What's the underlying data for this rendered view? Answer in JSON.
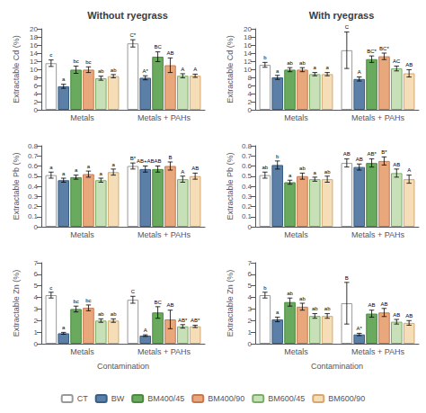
{
  "chart_data": [
    {
      "type": "bar",
      "title": "Without ryegrass",
      "ylabel": "Extractable Cd (%)",
      "categories": [
        "Metals",
        "Metals + PAHs"
      ],
      "series": [
        {
          "name": "CT",
          "color": "#ffffff",
          "edgecolor": "#999999",
          "values": [
            11.5,
            16.4
          ],
          "errors": [
            0.8,
            0.9
          ],
          "annotations": [
            "c",
            "C*"
          ]
        },
        {
          "name": "BW",
          "color": "#5b7fa6",
          "edgecolor": "#3a5f85",
          "values": [
            5.8,
            7.9
          ],
          "errors": [
            0.5,
            0.5
          ],
          "annotations": [
            "a",
            "A*"
          ]
        },
        {
          "name": "BM400/45",
          "color": "#6aaa5e",
          "edgecolor": "#4a8a3e",
          "values": [
            9.9,
            13.1
          ],
          "errors": [
            0.9,
            1.2
          ],
          "annotations": [
            "bc",
            "BC"
          ]
        },
        {
          "name": "BM400/90",
          "color": "#e8a87c",
          "edgecolor": "#c87850",
          "values": [
            9.9,
            11.0
          ],
          "errors": [
            0.7,
            1.8
          ],
          "annotations": [
            "bc",
            "AB"
          ]
        },
        {
          "name": "BM600/45",
          "color": "#c8e0b8",
          "edgecolor": "#7aaf68",
          "values": [
            7.8,
            8.4
          ],
          "errors": [
            0.5,
            0.5
          ],
          "annotations": [
            "ab",
            "A"
          ]
        },
        {
          "name": "BM600/90",
          "color": "#f5ddb8",
          "edgecolor": "#d5a870",
          "values": [
            8.3,
            8.4
          ],
          "errors": [
            0.4,
            0.4
          ],
          "annotations": [
            "ab",
            "A"
          ]
        }
      ],
      "ylim": [
        0,
        20
      ],
      "yticks": [
        0,
        2,
        4,
        6,
        8,
        10,
        12,
        14,
        16,
        18,
        20
      ],
      "grid": false,
      "legend": "bottom"
    },
    {
      "type": "bar",
      "title": "With ryegrass",
      "ylabel": "Extractable Cd (%)",
      "categories": [
        "Metals",
        "Metals + PAHs"
      ],
      "series": [
        {
          "name": "CT",
          "color": "#ffffff",
          "edgecolor": "#999999",
          "values": [
            11.1,
            14.7
          ],
          "errors": [
            0.6,
            4.5
          ],
          "annotations": [
            "b",
            "C"
          ]
        },
        {
          "name": "BW",
          "color": "#5b7fa6",
          "edgecolor": "#3a5f85",
          "values": [
            8.0,
            7.6
          ],
          "errors": [
            0.5,
            0.5
          ],
          "annotations": [
            "a",
            "A"
          ]
        },
        {
          "name": "BM400/45",
          "color": "#6aaa5e",
          "edgecolor": "#4a8a3e",
          "values": [
            9.9,
            12.5
          ],
          "errors": [
            0.5,
            0.8
          ],
          "annotations": [
            "ab",
            "BC*"
          ]
        },
        {
          "name": "BM400/90",
          "color": "#e8a87c",
          "edgecolor": "#c87850",
          "values": [
            9.9,
            13.2
          ],
          "errors": [
            0.5,
            0.8
          ],
          "annotations": [
            "ab",
            "BC*"
          ]
        },
        {
          "name": "BM600/45",
          "color": "#c8e0b8",
          "edgecolor": "#7aaf68",
          "values": [
            8.8,
            10.2
          ],
          "errors": [
            0.4,
            0.6
          ],
          "annotations": [
            "a",
            "AC"
          ]
        },
        {
          "name": "BM600/90",
          "color": "#f5ddb8",
          "edgecolor": "#d5a870",
          "values": [
            8.8,
            9.0
          ],
          "errors": [
            0.4,
            0.9
          ],
          "annotations": [
            "a",
            "AB"
          ]
        }
      ],
      "ylim": [
        0,
        20
      ],
      "yticks": [
        0,
        2,
        4,
        6,
        8,
        10,
        12,
        14,
        16,
        18,
        20
      ],
      "grid": false,
      "legend": "bottom"
    },
    {
      "type": "bar",
      "ylabel": "Extractable Pb (%)",
      "categories": [
        "Metals",
        "Metals + PAHs"
      ],
      "series": [
        {
          "name": "CT",
          "color": "#ffffff",
          "edgecolor": "#999999",
          "values": [
            0.51,
            0.6
          ],
          "errors": [
            0.03,
            0.03
          ],
          "annotations": [
            "a",
            "B*"
          ]
        },
        {
          "name": "BW",
          "color": "#5b7fa6",
          "edgecolor": "#3a5f85",
          "values": [
            0.46,
            0.57
          ],
          "errors": [
            0.02,
            0.03
          ],
          "annotations": [
            "a",
            "AB+AB"
          ]
        },
        {
          "name": "BM400/45",
          "color": "#6aaa5e",
          "edgecolor": "#4a8a3e",
          "values": [
            0.49,
            0.57
          ],
          "errors": [
            0.02,
            0.03
          ],
          "annotations": [
            "a",
            "AB"
          ]
        },
        {
          "name": "BM400/90",
          "color": "#e8a87c",
          "edgecolor": "#c87850",
          "values": [
            0.52,
            0.6
          ],
          "errors": [
            0.03,
            0.04
          ],
          "annotations": [
            "a",
            "B"
          ]
        },
        {
          "name": "BM600/45",
          "color": "#c8e0b8",
          "edgecolor": "#7aaf68",
          "values": [
            0.46,
            0.47
          ],
          "errors": [
            0.02,
            0.03
          ],
          "annotations": [
            "a",
            "A"
          ]
        },
        {
          "name": "BM600/90",
          "color": "#f5ddb8",
          "edgecolor": "#d5a870",
          "values": [
            0.54,
            0.5
          ],
          "errors": [
            0.03,
            0.03
          ],
          "annotations": [
            "a",
            "AB"
          ]
        }
      ],
      "ylim": [
        0,
        0.8
      ],
      "yticks": [
        0,
        0.1,
        0.2,
        0.3,
        0.4,
        0.5,
        0.6,
        0.7,
        0.8
      ],
      "grid": false,
      "legend": "bottom"
    },
    {
      "type": "bar",
      "ylabel": "Extractable Pb (%)",
      "categories": [
        "Metals",
        "Metals + PAHs"
      ],
      "series": [
        {
          "name": "CT",
          "color": "#ffffff",
          "edgecolor": "#999999",
          "values": [
            0.51,
            0.63
          ],
          "errors": [
            0.03,
            0.04
          ],
          "annotations": [
            "ab",
            "AB"
          ]
        },
        {
          "name": "BW",
          "color": "#5b7fa6",
          "edgecolor": "#3a5f85",
          "values": [
            0.61,
            0.59
          ],
          "errors": [
            0.04,
            0.03
          ],
          "annotations": [
            "b",
            "AB"
          ]
        },
        {
          "name": "BM400/45",
          "color": "#6aaa5e",
          "edgecolor": "#4a8a3e",
          "values": [
            0.44,
            0.63
          ],
          "errors": [
            0.02,
            0.04
          ],
          "annotations": [
            "a",
            "AB*"
          ]
        },
        {
          "name": "BM400/90",
          "color": "#e8a87c",
          "edgecolor": "#c87850",
          "values": [
            0.5,
            0.65
          ],
          "errors": [
            0.03,
            0.04
          ],
          "annotations": [
            "ab",
            "B*"
          ]
        },
        {
          "name": "BM600/45",
          "color": "#c8e0b8",
          "edgecolor": "#7aaf68",
          "values": [
            0.47,
            0.53
          ],
          "errors": [
            0.02,
            0.04
          ],
          "annotations": [
            "a",
            "AB"
          ]
        },
        {
          "name": "BM600/90",
          "color": "#f5ddb8",
          "edgecolor": "#d5a870",
          "values": [
            0.47,
            0.47
          ],
          "errors": [
            0.03,
            0.04
          ],
          "annotations": [
            "ab",
            "A"
          ]
        }
      ],
      "ylim": [
        0,
        0.8
      ],
      "yticks": [
        0,
        0.1,
        0.2,
        0.3,
        0.4,
        0.5,
        0.6,
        0.7,
        0.8
      ],
      "grid": false,
      "legend": "bottom"
    },
    {
      "type": "bar",
      "ylabel": "Extractable Zn (%)",
      "xlabel": "Contamination",
      "categories": [
        "Metals",
        "Metals + PAHs"
      ],
      "series": [
        {
          "name": "CT",
          "color": "#ffffff",
          "edgecolor": "#999999",
          "values": [
            4.2,
            3.8
          ],
          "errors": [
            0.25,
            0.3
          ],
          "annotations": [
            "c",
            "C"
          ]
        },
        {
          "name": "BW",
          "color": "#5b7fa6",
          "edgecolor": "#3a5f85",
          "values": [
            0.9,
            0.7
          ],
          "errors": [
            0.08,
            0.07
          ],
          "annotations": [
            "a",
            "A"
          ]
        },
        {
          "name": "BM400/45",
          "color": "#6aaa5e",
          "edgecolor": "#4a8a3e",
          "values": [
            3.0,
            2.7
          ],
          "errors": [
            0.25,
            0.5
          ],
          "annotations": [
            "bc",
            "BC"
          ]
        },
        {
          "name": "BM400/90",
          "color": "#e8a87c",
          "edgecolor": "#c87850",
          "values": [
            3.1,
            2.1
          ],
          "errors": [
            0.25,
            0.8
          ],
          "annotations": [
            "bc",
            "AB"
          ]
        },
        {
          "name": "BM600/45",
          "color": "#c8e0b8",
          "edgecolor": "#7aaf68",
          "values": [
            2.0,
            1.5
          ],
          "errors": [
            0.15,
            0.15
          ],
          "annotations": [
            "ab",
            "AB*"
          ]
        },
        {
          "name": "BM600/90",
          "color": "#f5ddb8",
          "edgecolor": "#d5a870",
          "values": [
            2.0,
            1.5
          ],
          "errors": [
            0.15,
            0.1
          ],
          "annotations": [
            "ab",
            "AB*"
          ]
        }
      ],
      "ylim": [
        0,
        7
      ],
      "yticks": [
        0,
        1,
        2,
        3,
        4,
        5,
        6,
        7
      ],
      "grid": false,
      "legend": "bottom"
    },
    {
      "type": "bar",
      "ylabel": "Extractable Zn (%)",
      "xlabel": "Contamination",
      "categories": [
        "Metals",
        "Metals + PAHs"
      ],
      "series": [
        {
          "name": "CT",
          "color": "#ffffff",
          "edgecolor": "#999999",
          "values": [
            4.2,
            3.5
          ],
          "errors": [
            0.25,
            1.8
          ],
          "annotations": [
            "b",
            "B"
          ]
        },
        {
          "name": "BW",
          "color": "#5b7fa6",
          "edgecolor": "#3a5f85",
          "values": [
            2.1,
            0.8
          ],
          "errors": [
            0.2,
            0.1
          ],
          "annotations": [
            "a",
            "A*"
          ]
        },
        {
          "name": "BM400/45",
          "color": "#6aaa5e",
          "edgecolor": "#4a8a3e",
          "values": [
            3.6,
            2.6
          ],
          "errors": [
            0.35,
            0.3
          ],
          "annotations": [
            "ab",
            "AB"
          ]
        },
        {
          "name": "BM400/90",
          "color": "#e8a87c",
          "edgecolor": "#c87850",
          "values": [
            3.2,
            2.7
          ],
          "errors": [
            0.3,
            0.35
          ],
          "annotations": [
            "ab",
            "AB"
          ]
        },
        {
          "name": "BM600/45",
          "color": "#c8e0b8",
          "edgecolor": "#7aaf68",
          "values": [
            2.4,
            1.9
          ],
          "errors": [
            0.2,
            0.2
          ],
          "annotations": [
            "ab",
            "AB"
          ]
        },
        {
          "name": "BM600/90",
          "color": "#f5ddb8",
          "edgecolor": "#d5a870",
          "values": [
            2.4,
            1.8
          ],
          "errors": [
            0.2,
            0.2
          ],
          "annotations": [
            "ab",
            "AB"
          ]
        }
      ],
      "ylim": [
        0,
        7
      ],
      "yticks": [
        0,
        1,
        2,
        3,
        4,
        5,
        6,
        7
      ],
      "grid": false,
      "legend": "bottom"
    }
  ]
}
